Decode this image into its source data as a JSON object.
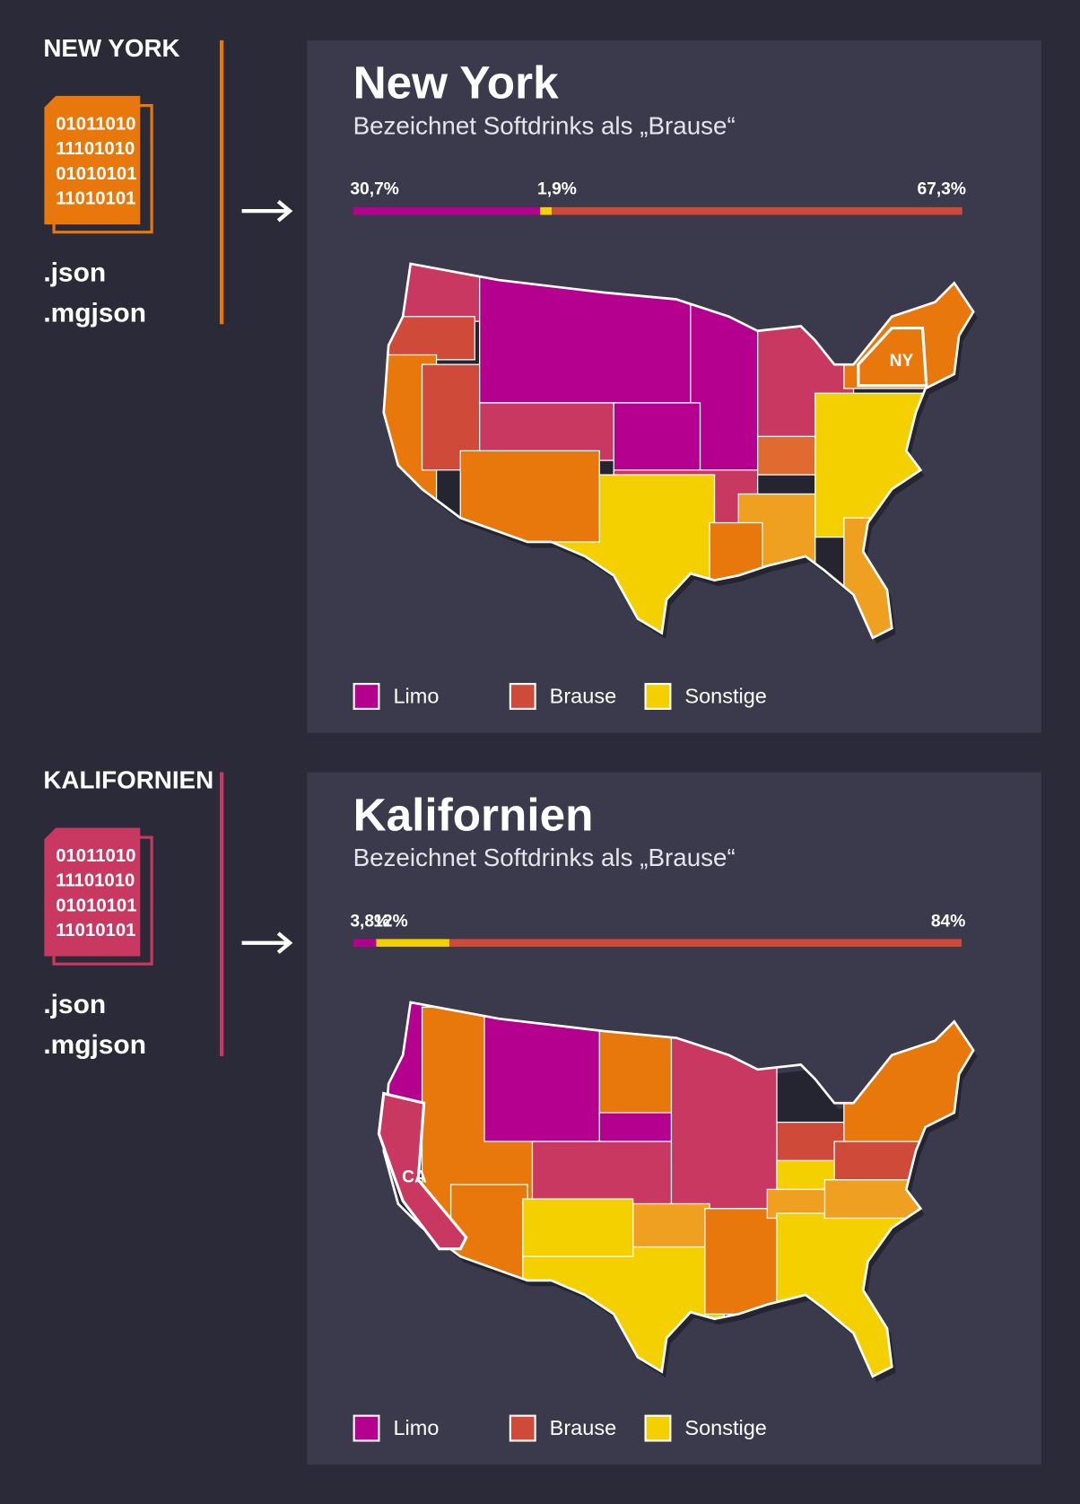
{
  "panels": [
    {
      "label": "NEW YORK",
      "color": "#e8780c",
      "file_lines": [
        "01011010",
        "11101010",
        "01010101",
        "11010101"
      ],
      "extensions": [
        ".json",
        ".mgjson"
      ]
    },
    {
      "label": "KALIFORNIEN",
      "color": "#c83860",
      "file_lines": [
        "01011010",
        "11101010",
        "01010101",
        "11010101"
      ],
      "extensions": [
        ".json",
        ".mgjson"
      ]
    }
  ],
  "chart_data": [
    {
      "type": "bar",
      "title": "New York",
      "subtitle": "Bezeichnet Softdrinks als „Brause“",
      "map_label": "NY",
      "xlim": [
        0,
        100
      ],
      "series": [
        {
          "name": "Limo",
          "color": "#b5008f",
          "values": [
            30.7
          ],
          "value_labels": [
            "30,7%"
          ]
        },
        {
          "name": "Sonstige",
          "color": "#f5d000",
          "values": [
            1.9
          ],
          "value_labels": [
            "1,9%"
          ]
        },
        {
          "name": "Brause",
          "color": "#d04a3a",
          "values": [
            67.3
          ],
          "value_labels": [
            "67,3%"
          ]
        }
      ]
    },
    {
      "type": "bar",
      "title": "Kalifornien",
      "subtitle": "Bezeichnet Softdrinks als „Brause“",
      "map_label": "CA",
      "xlim": [
        0,
        100
      ],
      "series": [
        {
          "name": "Limo",
          "color": "#b5008f",
          "values": [
            3.8
          ],
          "value_labels": [
            "3,8%"
          ]
        },
        {
          "name": "Sonstige",
          "color": "#f5d000",
          "values": [
            12
          ],
          "value_labels": [
            "12%"
          ]
        },
        {
          "name": "Brause",
          "color": "#d04a3a",
          "values": [
            84
          ],
          "value_labels": [
            "84%"
          ]
        }
      ]
    }
  ]
}
